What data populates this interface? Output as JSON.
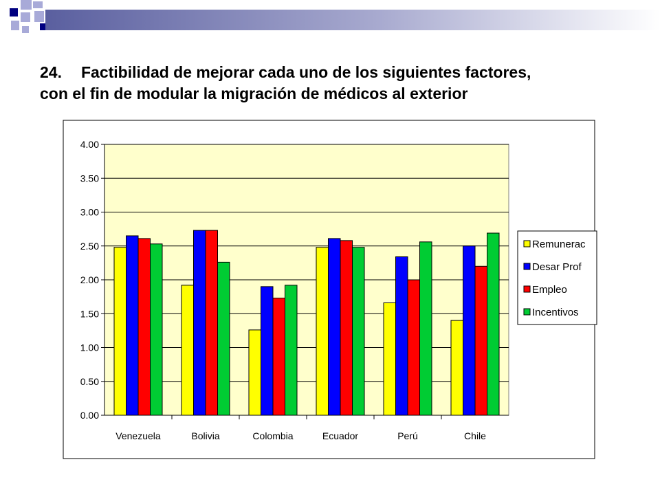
{
  "slide": {
    "number": "24.",
    "title_line1": "Factibilidad de mejorar cada uno de los siguientes factores,",
    "title_line2": "con el fin de modular la migración de médicos al exterior"
  },
  "chart_data": {
    "type": "bar",
    "title": "",
    "xlabel": "",
    "ylabel": "",
    "categories": [
      "Venezuela",
      "Bolivia",
      "Colombia",
      "Ecuador",
      "Perú",
      "Chile"
    ],
    "series": [
      {
        "name": "Remunerac",
        "color": "#FFFF00",
        "values": [
          2.48,
          1.92,
          1.26,
          2.48,
          1.66,
          1.4
        ]
      },
      {
        "name": "Desar Prof",
        "color": "#0000FF",
        "values": [
          2.65,
          2.73,
          1.9,
          2.61,
          2.34,
          2.5
        ]
      },
      {
        "name": "Empleo",
        "color": "#FF0000",
        "values": [
          2.61,
          2.73,
          1.73,
          2.58,
          2.0,
          2.2
        ]
      },
      {
        "name": "Incentivos",
        "color": "#00CC33",
        "values": [
          2.53,
          2.26,
          1.92,
          2.48,
          2.56,
          2.69
        ]
      }
    ],
    "ylim": [
      0,
      4
    ],
    "yticks": [
      "0.00",
      "0.50",
      "1.00",
      "1.50",
      "2.00",
      "2.50",
      "3.00",
      "3.50",
      "4.00"
    ],
    "plot_background": "#FFFFCC",
    "grid": true,
    "legend_position": "right"
  },
  "decor": {
    "navy": "#000080",
    "lavender": "#A8AAD8"
  }
}
